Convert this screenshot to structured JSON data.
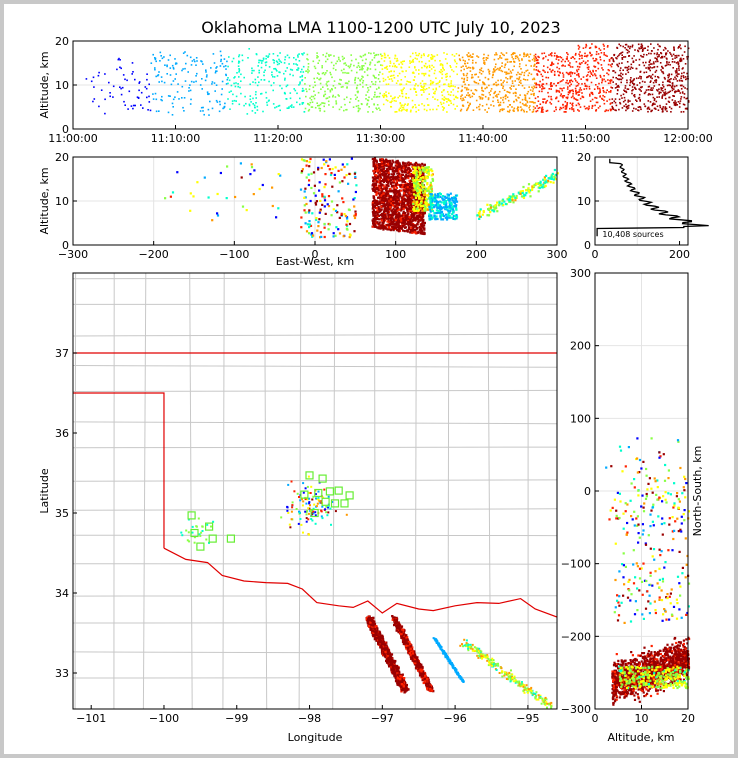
{
  "chart_data": {
    "type": "scatter",
    "title": "Oklahoma LMA 1100-1200 UTC July 10, 2023",
    "colormap": [
      "#0000ff",
      "#00aaff",
      "#00ffcc",
      "#88ff44",
      "#ffff00",
      "#ff9900",
      "#ff2200",
      "#990000"
    ],
    "panels": {
      "time_altitude": {
        "ylabel": "Altitude, km",
        "ylim": [
          0,
          20
        ],
        "yticks": [
          "0",
          "10",
          "20"
        ],
        "xlim": [
          "11:00:00",
          "12:00:00"
        ],
        "xticks": [
          "11:00:00",
          "11:10:00",
          "11:20:00",
          "11:30:00",
          "11:40:00",
          "11:50:00",
          "12:00:00"
        ]
      },
      "east_west_altitude": {
        "xlabel": "East-West, km",
        "ylabel": "Altitude, km",
        "xlim": [
          -300,
          300
        ],
        "ylim": [
          0,
          20
        ],
        "xticks": [
          "−300",
          "−200",
          "−100",
          "0",
          "100",
          "200",
          "300"
        ],
        "yticks": [
          "0",
          "10",
          "20"
        ]
      },
      "altitude_histogram": {
        "xlim": [
          0,
          220
        ],
        "ylim": [
          0,
          20
        ],
        "xticks": [
          "0",
          "200"
        ],
        "yticks": [
          "0",
          "10",
          "20"
        ],
        "source_count": "10,408 sources"
      },
      "plan_view": {
        "xlabel": "Longitude",
        "ylabel": "Latitude",
        "xlim": [
          -101.25,
          -94.6
        ],
        "ylim": [
          32.55,
          38.0
        ],
        "xticks": [
          "−101",
          "−100",
          "−99",
          "−98",
          "−97",
          "−96",
          "−95"
        ],
        "yticks": [
          "33",
          "34",
          "35",
          "36",
          "37"
        ],
        "station_count": 17
      },
      "north_south_altitude": {
        "xlabel": "Altitude, km",
        "ylabel": "North-South, km",
        "xlim": [
          0,
          20
        ],
        "ylim": [
          -300,
          300
        ],
        "xticks": [
          "0",
          "10",
          "20"
        ],
        "yticks": [
          "−300",
          "−200",
          "−100",
          "0",
          "100",
          "200",
          "300"
        ]
      }
    }
  }
}
